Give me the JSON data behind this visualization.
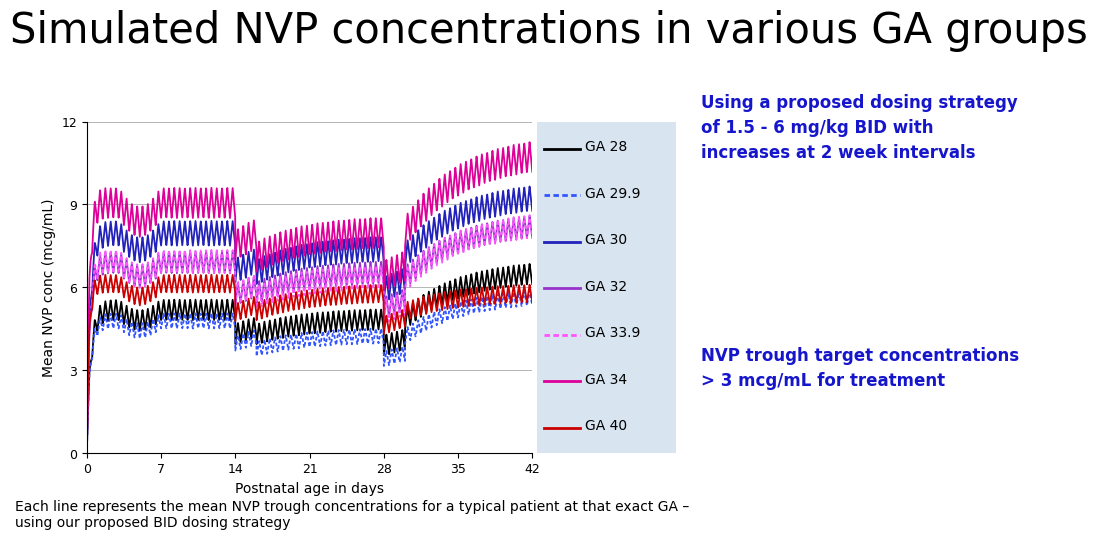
{
  "title": "Simulated NVP concentrations in various GA groups",
  "xlabel": "Postnatal age in days",
  "ylabel": "Mean NVP conc (mcg/mL)",
  "xlim": [
    0,
    42
  ],
  "ylim": [
    0,
    12
  ],
  "xticks": [
    0,
    7,
    14,
    21,
    28,
    35,
    42
  ],
  "yticks": [
    0,
    3,
    6,
    9,
    12
  ],
  "background_color": "#ffffff",
  "annotation1": "Using a proposed dosing strategy\nof 1.5 - 6 mg/kg BID with\nincreases at 2 week intervals",
  "annotation2": "NVP trough target concentrations\n> 3 mcg/mL for treatment",
  "footnote": "Each line represents the mean NVP trough concentrations for a typical patient at that exact GA –\nusing our proposed BID dosing strategy",
  "legend_bg": "#d8e4f0",
  "annotation_color": "#1515CC",
  "title_fontsize": 30,
  "axis_fontsize": 10,
  "legend_fontsize": 10,
  "footnote_fontsize": 10,
  "series": [
    {
      "label": "GA 28",
      "color": "#000000",
      "linestyle": "solid",
      "ga": 28
    },
    {
      "label": "GA 29.9",
      "color": "#3355FF",
      "linestyle": "dotted",
      "ga": 29.9
    },
    {
      "label": "GA 30",
      "color": "#2222BB",
      "linestyle": "solid",
      "ga": 30
    },
    {
      "label": "GA 32",
      "color": "#9933CC",
      "linestyle": "solid",
      "ga": 32
    },
    {
      "label": "GA 33.9",
      "color": "#FF55FF",
      "linestyle": "dotted",
      "ga": 33.9
    },
    {
      "label": "GA 34",
      "color": "#DD0099",
      "linestyle": "solid",
      "ga": 34
    },
    {
      "label": "GA 40",
      "color": "#CC0000",
      "linestyle": "solid",
      "ga": 40
    }
  ]
}
